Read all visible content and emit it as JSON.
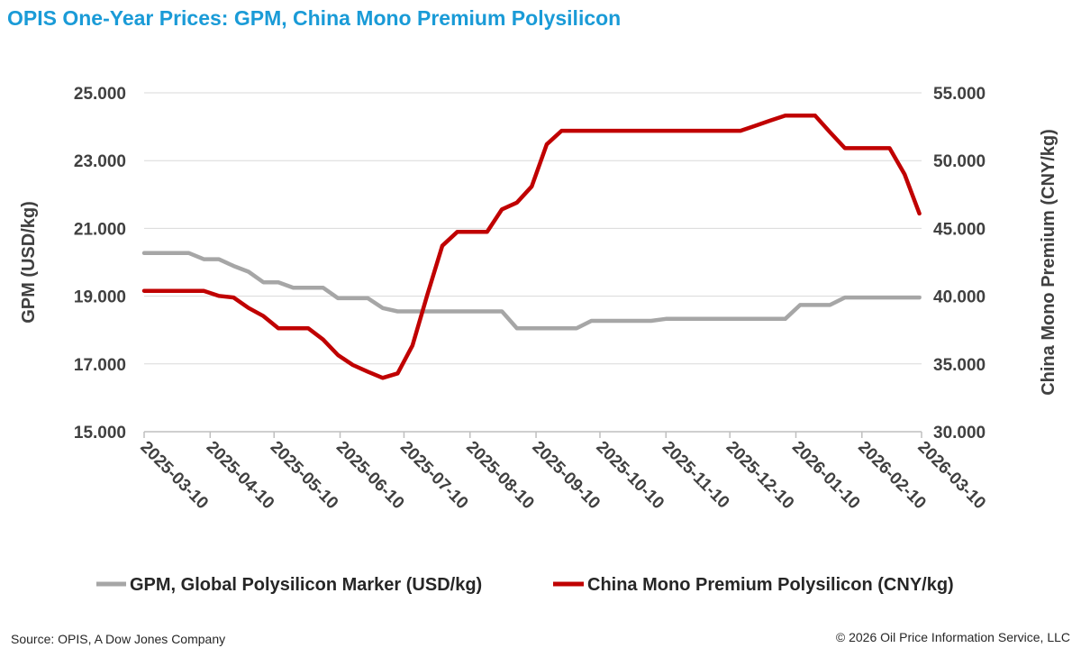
{
  "chart_data": {
    "type": "line",
    "title": "OPIS One-Year Prices: GPM, China Mono Premium Polysilicon",
    "ylabel": "GPM (USD/kg)",
    "y2label": "China Mono Premium (CNY/kg)",
    "xlabel": "",
    "ylim": [
      15,
      25
    ],
    "y2lim": [
      30,
      55
    ],
    "yticks": [
      "15.000",
      "17.000",
      "19.000",
      "21.000",
      "23.000",
      "25.000"
    ],
    "y2ticks": [
      "30.000",
      "35.000",
      "40.000",
      "45.000",
      "50.000",
      "55.000"
    ],
    "xticks": [
      "2025-03-10",
      "2025-04-10",
      "2025-05-10",
      "2025-06-10",
      "2025-07-10",
      "2025-08-10",
      "2025-09-10",
      "2025-10-10",
      "2025-11-10",
      "2025-12-10",
      "2026-01-10",
      "2026-02-10",
      "2026-03-10"
    ],
    "xlim": [
      "2025-03-10",
      "2026-03-10"
    ],
    "grid": "horizontal",
    "legend": "bottom",
    "x": [
      "2025-03-10",
      "2025-03-17",
      "2025-03-24",
      "2025-03-31",
      "2025-04-07",
      "2025-04-14",
      "2025-04-21",
      "2025-04-28",
      "2025-05-05",
      "2025-05-12",
      "2025-05-19",
      "2025-05-26",
      "2025-06-02",
      "2025-06-09",
      "2025-06-16",
      "2025-06-23",
      "2025-06-30",
      "2025-07-07",
      "2025-07-14",
      "2025-07-21",
      "2025-07-28",
      "2025-08-04",
      "2025-08-11",
      "2025-08-18",
      "2025-08-25",
      "2025-09-01",
      "2025-09-08",
      "2025-09-15",
      "2025-09-22",
      "2025-09-29",
      "2025-10-06",
      "2025-10-13",
      "2025-10-20",
      "2025-10-27",
      "2025-11-03",
      "2025-11-10",
      "2025-11-17",
      "2025-11-24",
      "2025-12-01",
      "2025-12-08",
      "2025-12-15",
      "2025-12-22",
      "2025-12-29",
      "2026-01-05",
      "2026-01-12",
      "2026-01-19",
      "2026-01-26",
      "2026-02-02",
      "2026-02-09",
      "2026-02-16",
      "2026-02-23",
      "2026-03-02",
      "2026-03-09"
    ],
    "series": [
      {
        "name": "GPM, Global Polysilicon Marker (USD/kg)",
        "axis": "left",
        "color": "#a6a6a6",
        "values": [
          20.27,
          20.27,
          20.27,
          20.27,
          20.09,
          20.09,
          19.89,
          19.72,
          19.41,
          19.41,
          19.25,
          19.25,
          19.25,
          18.94,
          18.94,
          18.94,
          18.65,
          18.55,
          18.55,
          18.55,
          18.55,
          18.55,
          18.55,
          18.55,
          18.55,
          18.05,
          18.05,
          18.05,
          18.05,
          18.05,
          18.27,
          18.27,
          18.27,
          18.27,
          18.27,
          18.33,
          18.33,
          18.33,
          18.33,
          18.33,
          18.33,
          18.33,
          18.33,
          18.33,
          18.74,
          18.74,
          18.74,
          18.96,
          18.96,
          18.96,
          18.96,
          18.96,
          18.96
        ]
      },
      {
        "name": "China Mono Premium Polysilicon (CNY/kg)",
        "axis": "right",
        "color": "#c00000",
        "values": [
          40.39,
          40.39,
          40.39,
          40.39,
          40.39,
          40.02,
          39.9,
          39.13,
          38.53,
          37.63,
          37.63,
          37.63,
          36.8,
          35.65,
          34.92,
          34.43,
          33.97,
          34.3,
          36.36,
          40.13,
          43.72,
          44.74,
          44.74,
          44.74,
          46.4,
          46.9,
          48.1,
          51.2,
          52.2,
          52.2,
          52.2,
          52.2,
          52.2,
          52.2,
          52.2,
          52.2,
          52.2,
          52.2,
          52.2,
          52.2,
          52.2,
          52.57,
          52.95,
          53.32,
          53.32,
          53.32,
          52.1,
          50.92,
          50.92,
          50.92,
          50.92,
          49.0,
          46.1
        ]
      }
    ]
  },
  "title_color": "#1a9bd7",
  "footer": {
    "source": "Source: OPIS, A Dow Jones Company",
    "copyright": "© 2026 Oil Price Information Service, LLC"
  }
}
